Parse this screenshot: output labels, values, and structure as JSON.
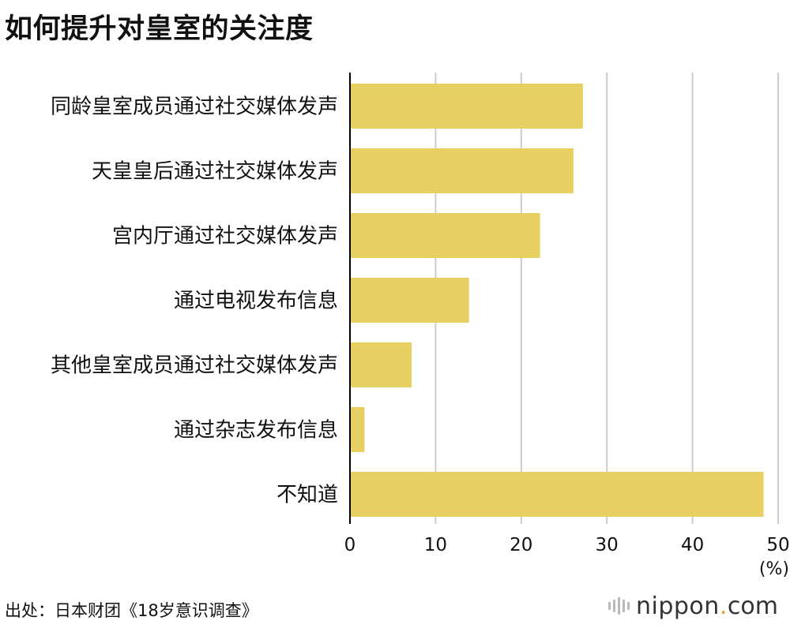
{
  "title": "如何提升对皇室的关注度",
  "source": "出处：日本财团《18岁意识调查》",
  "logo": {
    "name": "nippon",
    "dot": ".",
    "tld": "com"
  },
  "colors": {
    "bar": "#e8cf62",
    "grid": "#cccccc",
    "axis": "#000000",
    "text": "#111111"
  },
  "chart_data": {
    "type": "bar",
    "orientation": "horizontal",
    "categories": [
      "同龄皇室成员通过社交媒体发声",
      "天皇皇后通过社交媒体发声",
      "宫内厅通过社交媒体发声",
      "通过电视发布信息",
      "其他皇室成员通过社交媒体发声",
      "通过杂志发布信息",
      "不知道"
    ],
    "values": [
      27.2,
      26.1,
      22.2,
      13.9,
      7.2,
      1.7,
      48.3
    ],
    "xlim": [
      0,
      50
    ],
    "xticks": [
      "0",
      "10",
      "20",
      "30",
      "40",
      "50"
    ],
    "unit": "(%)",
    "grid": true,
    "legend": "none"
  }
}
